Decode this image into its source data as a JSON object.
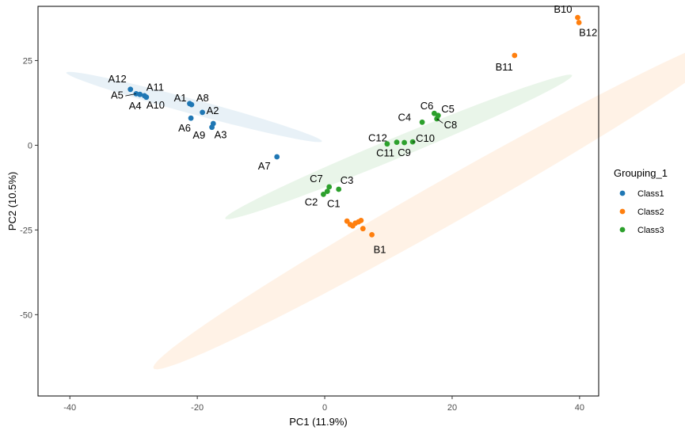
{
  "chart_data": {
    "type": "scatter",
    "xlabel": "PC1 (11.9%)",
    "ylabel": "PC2 (10.5%)",
    "xlim": [
      -45,
      43
    ],
    "ylim": [
      -74,
      41
    ],
    "x_ticks": [
      -40,
      -20,
      0,
      20,
      40
    ],
    "y_ticks": [
      25,
      0,
      -25,
      -50
    ],
    "grid": false,
    "legend": {
      "title": "Grouping_1",
      "position": "right"
    },
    "series": [
      {
        "name": "Class1",
        "color": "#1f77b4",
        "points": [
          {
            "label": "A12",
            "x": -30.5,
            "y": 16.5
          },
          {
            "label": "A5",
            "x": -29.6,
            "y": 15.2
          },
          {
            "label": "A4",
            "x": -29.0,
            "y": 15.0
          },
          {
            "label": "A10",
            "x": -28.3,
            "y": 14.6
          },
          {
            "label": "A11",
            "x": -28.0,
            "y": 14.2
          },
          {
            "label": "A1",
            "x": -21.2,
            "y": 12.3
          },
          {
            "label": "A8",
            "x": -20.9,
            "y": 12.0
          },
          {
            "label": "A2",
            "x": -19.2,
            "y": 9.7
          },
          {
            "label": "A6",
            "x": -21.0,
            "y": 8.0
          },
          {
            "label": "A9",
            "x": -17.5,
            "y": 6.4
          },
          {
            "label": "A3",
            "x": -17.7,
            "y": 5.3
          },
          {
            "label": "A7",
            "x": -7.5,
            "y": -3.4
          }
        ]
      },
      {
        "name": "Class2",
        "color": "#ff7f0e",
        "points": [
          {
            "label": "B10",
            "x": 39.7,
            "y": 37.7
          },
          {
            "label": "B12",
            "x": 39.9,
            "y": 36.2
          },
          {
            "label": "B11",
            "x": 29.8,
            "y": 26.5
          },
          {
            "label": "",
            "x": 3.5,
            "y": -22.4
          },
          {
            "label": "",
            "x": 4.0,
            "y": -23.4
          },
          {
            "label": "",
            "x": 4.4,
            "y": -23.8
          },
          {
            "label": "",
            "x": 4.8,
            "y": -23.0
          },
          {
            "label": "",
            "x": 5.3,
            "y": -22.6
          },
          {
            "label": "",
            "x": 5.7,
            "y": -22.2
          },
          {
            "label": "",
            "x": 6.0,
            "y": -24.6
          },
          {
            "label": "B1",
            "x": 7.4,
            "y": -26.4
          }
        ]
      },
      {
        "name": "Class3",
        "color": "#2ca02c",
        "points": [
          {
            "label": "C6",
            "x": 17.2,
            "y": 9.4
          },
          {
            "label": "C5",
            "x": 17.8,
            "y": 8.8
          },
          {
            "label": "C8",
            "x": 17.6,
            "y": 7.8
          },
          {
            "label": "C4",
            "x": 15.3,
            "y": 6.8
          },
          {
            "label": "C12",
            "x": 9.8,
            "y": 0.4
          },
          {
            "label": "C11",
            "x": 11.3,
            "y": 0.9
          },
          {
            "label": "C9",
            "x": 12.5,
            "y": 0.8
          },
          {
            "label": "C10",
            "x": 13.8,
            "y": 1.0
          },
          {
            "label": "C3",
            "x": 2.2,
            "y": -13.0
          },
          {
            "label": "C7",
            "x": 0.7,
            "y": -12.3
          },
          {
            "label": "C2",
            "x": -0.2,
            "y": -14.5
          },
          {
            "label": "C1",
            "x": 0.4,
            "y": -13.6
          }
        ]
      }
    ],
    "ellipses": [
      {
        "group": "Class1",
        "color": "#1f77b4",
        "center": [
          -20.5,
          11.3
        ],
        "semi_major": 22.5,
        "semi_minor": 2.0,
        "angle_deg": -27
      },
      {
        "group": "Class2",
        "color": "#ff7f0e",
        "center": [
          19.6,
          -16.3
        ],
        "semi_major": 68.0,
        "semi_minor": 5.0,
        "angle_deg": 47
      },
      {
        "group": "Class3",
        "color": "#2ca02c",
        "center": [
          11.6,
          -0.5
        ],
        "semi_major": 34.5,
        "semi_minor": 2.6,
        "angle_deg": 38
      }
    ]
  }
}
